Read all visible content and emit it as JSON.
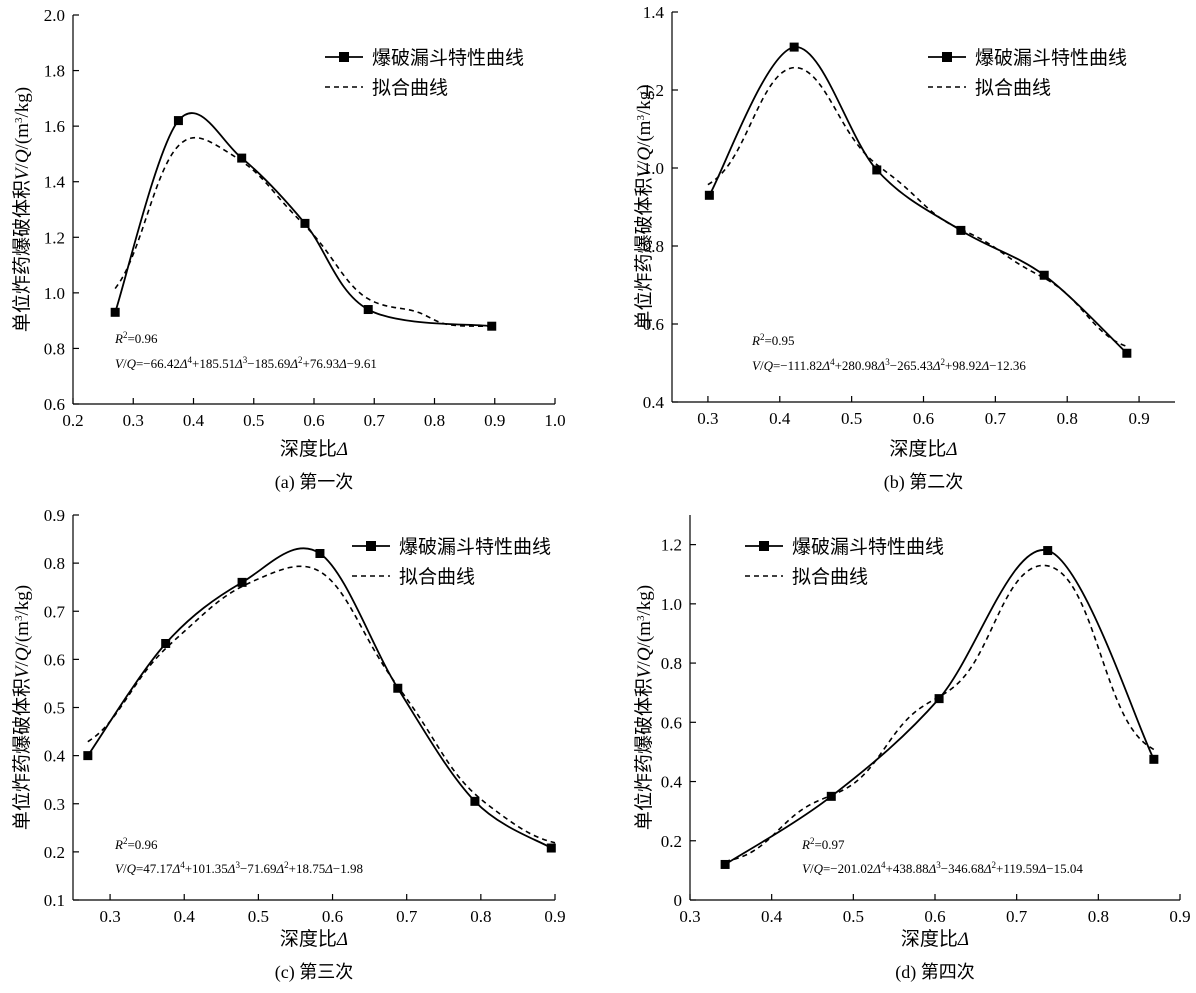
{
  "chart_data": [
    {
      "type": "line",
      "caption": "(a) 第一次",
      "xlabel": "深度比Δ",
      "ylabel": "单位炸药爆破体积V/Q/(m³/kg)",
      "xlim": [
        0.2,
        1.0
      ],
      "ylim": [
        0.6,
        2.0
      ],
      "xticks": [
        "0.2",
        "0.3",
        "0.4",
        "0.5",
        "0.6",
        "0.7",
        "0.8",
        "0.9",
        "1.0"
      ],
      "yticks": [
        "0.6",
        "0.8",
        "1.0",
        "1.2",
        "1.4",
        "1.6",
        "1.8",
        "2.0"
      ],
      "legend_position": "top-right",
      "series": [
        {
          "name": "爆破漏斗特性曲线",
          "style": "solid-with-square-markers",
          "x": [
            0.27,
            0.375,
            0.48,
            0.585,
            0.69,
            0.895
          ],
          "y": [
            0.93,
            1.62,
            1.485,
            1.25,
            0.94,
            0.88
          ]
        },
        {
          "name": "拟合曲线",
          "style": "dashed",
          "coeffs": [
            -66.42,
            185.51,
            -185.69,
            76.93,
            -9.61
          ],
          "domain": [
            0.27,
            0.9
          ]
        }
      ],
      "annotations": [
        "R²=0.96",
        "V/Q=−66.42Δ⁴+185.51Δ³−185.69Δ²+76.93Δ−9.61"
      ]
    },
    {
      "type": "line",
      "caption": "(b) 第二次",
      "xlabel": "深度比Δ",
      "ylabel": "单位炸药爆破体积V/Q/(m³/kg)",
      "xlim": [
        0.25,
        0.95
      ],
      "ylim": [
        0.4,
        1.4
      ],
      "xticks": [
        "0.3",
        "0.4",
        "0.5",
        "0.6",
        "0.7",
        "0.8",
        "0.9"
      ],
      "yticks": [
        "0.4",
        "0.6",
        "0.8",
        "1.0",
        "1.2",
        "1.4"
      ],
      "legend_position": "top-right",
      "series": [
        {
          "name": "爆破漏斗特性曲线",
          "style": "solid-with-square-markers",
          "x": [
            0.302,
            0.42,
            0.535,
            0.652,
            0.768,
            0.883
          ],
          "y": [
            0.93,
            1.31,
            0.995,
            0.84,
            0.725,
            0.525
          ]
        },
        {
          "name": "拟合曲线",
          "style": "dashed",
          "coeffs": [
            -111.82,
            280.98,
            -265.43,
            98.92,
            -12.36
          ],
          "domain": [
            0.3,
            0.885
          ]
        }
      ],
      "annotations": [
        "R²=0.95",
        "V/Q=−111.82Δ⁴+280.98Δ³−265.43Δ²+98.92Δ−12.36"
      ]
    },
    {
      "type": "line",
      "caption": "(c) 第三次",
      "xlabel": "深度比Δ",
      "ylabel": "单位炸药爆破体积V/Q/(m³/kg)",
      "xlim": [
        0.25,
        0.9
      ],
      "ylim": [
        0.1,
        0.9
      ],
      "xticks": [
        "0.3",
        "0.4",
        "0.5",
        "0.6",
        "0.7",
        "0.8",
        "0.9"
      ],
      "yticks": [
        "0.1",
        "0.2",
        "0.3",
        "0.4",
        "0.5",
        "0.6",
        "0.7",
        "0.8",
        "0.9"
      ],
      "legend_position": "top-right",
      "series": [
        {
          "name": "爆破漏斗特性曲线",
          "style": "solid-with-square-markers",
          "x": [
            0.27,
            0.375,
            0.478,
            0.583,
            0.688,
            0.792,
            0.895
          ],
          "y": [
            0.4,
            0.633,
            0.76,
            0.82,
            0.54,
            0.305,
            0.208
          ]
        },
        {
          "name": "拟合曲线",
          "style": "dashed",
          "coeffs": [
            47.17,
            101.35,
            -71.69,
            18.75,
            -1.98
          ],
          "domain": [
            0.27,
            0.9
          ]
        }
      ],
      "annotations": [
        "R²=0.96",
        "V/Q=47.17Δ⁴+101.35Δ³−71.69Δ²+18.75Δ−1.98"
      ]
    },
    {
      "type": "line",
      "caption": "(d) 第四次",
      "xlabel": "深度比Δ",
      "ylabel": "单位炸药爆破体积V/Q/(m³/kg)",
      "xlim": [
        0.3,
        0.9
      ],
      "ylim": [
        0,
        1.3
      ],
      "xticks": [
        "0.3",
        "0.4",
        "0.5",
        "0.6",
        "0.7",
        "0.8",
        "0.9"
      ],
      "yticks": [
        "0",
        "0.2",
        "0.4",
        "0.6",
        "0.8",
        "1.0",
        "1.2"
      ],
      "legend_position": "top-left",
      "series": [
        {
          "name": "爆破漏斗特性曲线",
          "style": "solid-with-square-markers",
          "x": [
            0.343,
            0.473,
            0.605,
            0.738,
            0.868
          ],
          "y": [
            0.12,
            0.35,
            0.68,
            1.18,
            0.475
          ]
        },
        {
          "name": "拟合曲线",
          "style": "dashed",
          "coeffs": [
            -201.02,
            438.88,
            -346.68,
            119.59,
            -15.04
          ],
          "domain": [
            0.343,
            0.868
          ]
        }
      ],
      "annotations": [
        "R²=0.97",
        "V/Q=−201.02Δ⁴+438.88Δ³−346.68Δ²+119.59Δ−15.04"
      ]
    }
  ]
}
